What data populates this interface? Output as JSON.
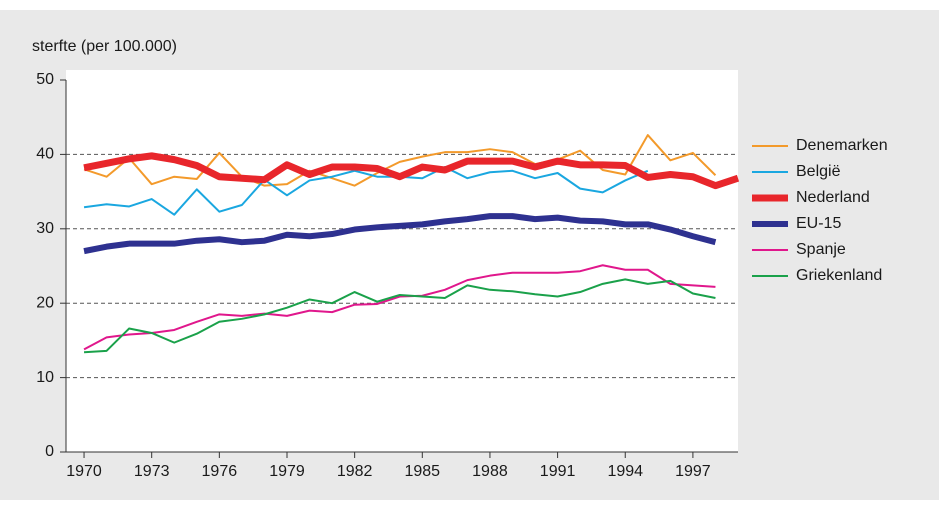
{
  "chart_data": {
    "type": "line",
    "y_label": "sterfte (per 100.000)",
    "x": [
      1970,
      1971,
      1972,
      1973,
      1974,
      1975,
      1976,
      1977,
      1978,
      1979,
      1980,
      1981,
      1982,
      1983,
      1984,
      1985,
      1986,
      1987,
      1988,
      1989,
      1990,
      1991,
      1992,
      1993,
      1994,
      1995,
      1996,
      1997,
      1998,
      1999
    ],
    "xlim": [
      1969.2,
      1999
    ],
    "xticks": [
      1970,
      1973,
      1976,
      1979,
      1982,
      1985,
      1988,
      1991,
      1994,
      1997
    ],
    "ylim": [
      0,
      50
    ],
    "yticks": [
      0,
      10,
      20,
      30,
      40,
      50
    ],
    "grid": true,
    "legend": "right",
    "series": [
      {
        "name": "Denemarken",
        "color": "#f39a2b",
        "line_width": 2,
        "values": [
          38,
          37,
          39.5,
          36,
          37,
          36.7,
          40.2,
          37,
          35.8,
          36,
          37.8,
          36.8,
          35.8,
          37.5,
          39,
          39.7,
          40.3,
          40.3,
          40.7,
          40.3,
          38.7,
          39.3,
          40.5,
          37.9,
          37.3,
          42.6,
          39.2,
          40.2,
          37.2,
          null
        ]
      },
      {
        "name": "België",
        "color": "#1aa7e0",
        "line_width": 2,
        "values": [
          32.9,
          33.3,
          33,
          34,
          31.9,
          35.3,
          32.3,
          33.2,
          36.6,
          34.5,
          36.5,
          37,
          37.8,
          37,
          37,
          36.8,
          38.3,
          36.8,
          37.6,
          37.8,
          36.8,
          37.5,
          35.4,
          34.9,
          36.5,
          37.8,
          null,
          null,
          null,
          null
        ]
      },
      {
        "name": "Nederland",
        "color": "#e8262b",
        "line_width": 7,
        "values": [
          38.2,
          38.8,
          39.4,
          39.8,
          39.3,
          38.5,
          37,
          36.8,
          36.6,
          38.6,
          37.3,
          38.3,
          38.3,
          38.1,
          37,
          38.3,
          37.9,
          39.1,
          39.1,
          39.1,
          38.3,
          39.1,
          38.6,
          38.6,
          38.5,
          36.9,
          37.3,
          37,
          35.8,
          36.8
        ]
      },
      {
        "name": "EU-15",
        "color": "#2e3190",
        "line_width": 6,
        "values": [
          27,
          27.6,
          28,
          28,
          28,
          28.4,
          28.6,
          28.2,
          28.4,
          29.2,
          29,
          29.3,
          29.9,
          30.2,
          30.4,
          30.6,
          31,
          31.3,
          31.7,
          31.7,
          31.3,
          31.5,
          31.1,
          31,
          30.6,
          30.6,
          29.9,
          29,
          28.2,
          null
        ]
      },
      {
        "name": "Spanje",
        "color": "#e0178c",
        "line_width": 2,
        "values": [
          13.8,
          15.4,
          15.8,
          16,
          16.4,
          17.5,
          18.5,
          18.3,
          18.6,
          18.3,
          19,
          18.8,
          19.8,
          19.9,
          20.9,
          21,
          21.8,
          23.1,
          23.7,
          24.1,
          24.1,
          24.1,
          24.3,
          25.1,
          24.5,
          24.5,
          22.6,
          22.4,
          22.2,
          null
        ]
      },
      {
        "name": "Griekenland",
        "color": "#1aa14a",
        "line_width": 2,
        "values": [
          13.4,
          13.6,
          16.6,
          16,
          14.7,
          15.9,
          17.5,
          17.9,
          18.5,
          19.4,
          20.5,
          20,
          21.5,
          20.2,
          21.1,
          20.9,
          20.7,
          22.4,
          21.8,
          21.6,
          21.2,
          20.9,
          21.5,
          22.6,
          23.2,
          22.6,
          23,
          21.3,
          20.7,
          null
        ]
      }
    ]
  }
}
